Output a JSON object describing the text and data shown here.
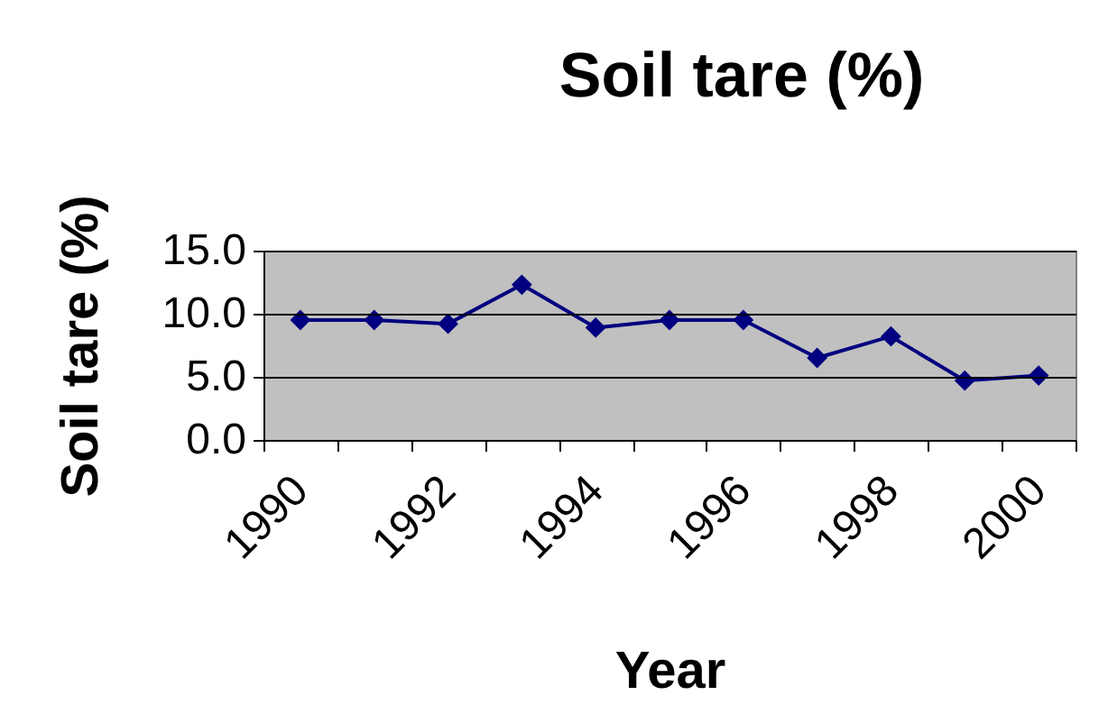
{
  "chart_data": {
    "type": "line",
    "title": "Soil tare (%)",
    "xlabel": "Year",
    "ylabel": "Soil tare (%)",
    "categories": [
      "1990",
      null,
      "1992",
      null,
      "1994",
      null,
      "1996",
      null,
      "1998",
      null,
      "2000"
    ],
    "series": [
      {
        "color": "#000080",
        "values": [
          9.5,
          9.5,
          9.2,
          12.3,
          8.9,
          9.5,
          9.5,
          6.5,
          8.2,
          4.7,
          5.1
        ]
      }
    ],
    "ylim": [
      0,
      15
    ],
    "yticks": [
      {
        "value": 0,
        "label": "0.0"
      },
      {
        "value": 5,
        "label": "5.0"
      },
      {
        "value": 10,
        "label": "10.0"
      },
      {
        "value": 15,
        "label": "15.0"
      }
    ],
    "grid": "y",
    "marker": "diamond",
    "line_style": "solid"
  }
}
